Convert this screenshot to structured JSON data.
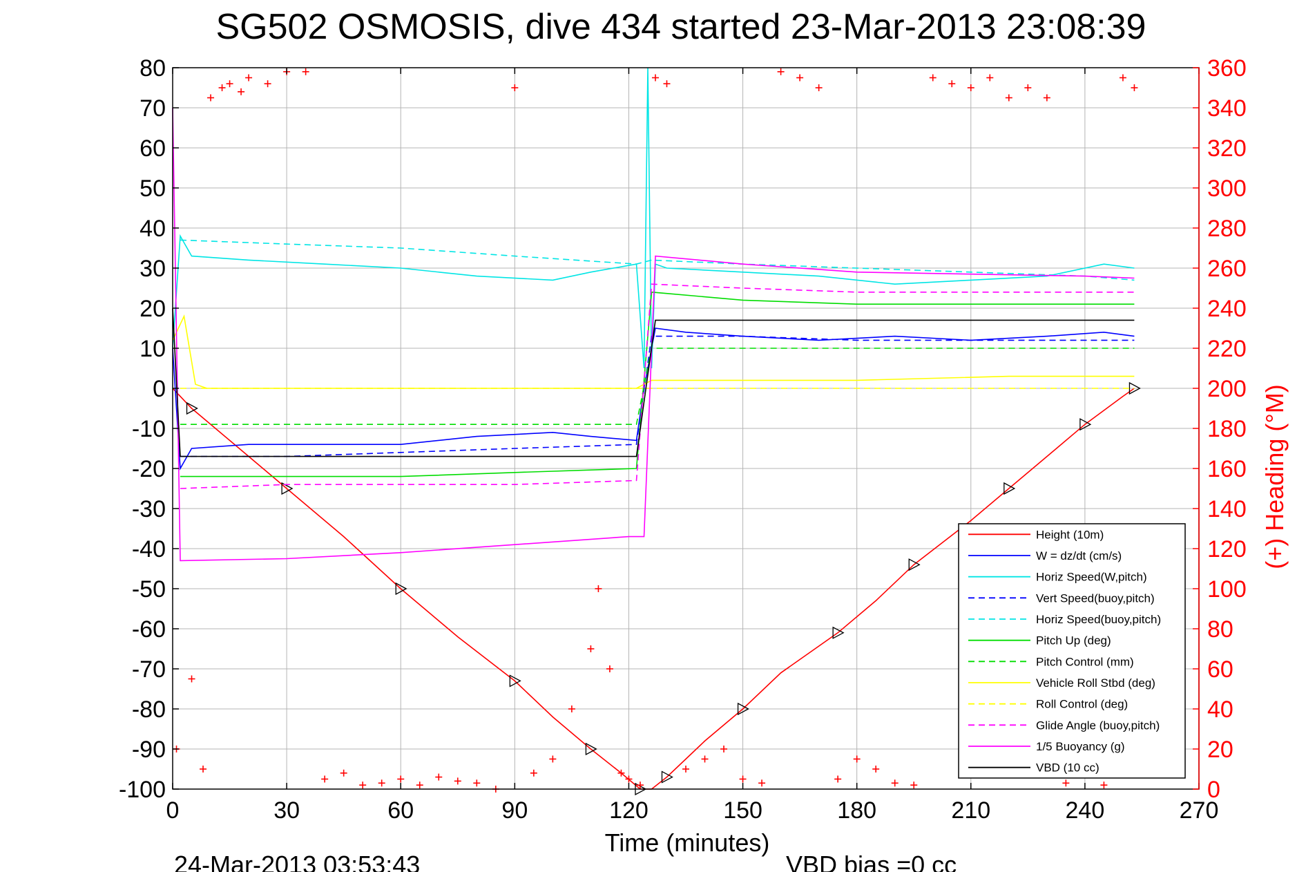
{
  "chart_data": {
    "type": "line",
    "title": "SG502 OSMOSIS, dive 434 started 23-Mar-2013 23:08:39",
    "xlabel": "Time (minutes)",
    "ylabel": "",
    "y2label": "(+) Heading (°M)",
    "xlim": [
      0,
      270
    ],
    "ylim": [
      -100,
      80
    ],
    "y2lim": [
      0,
      360
    ],
    "x_ticks": [
      "0",
      "30",
      "60",
      "90",
      "120",
      "150",
      "180",
      "210",
      "240",
      "270"
    ],
    "y_ticks": [
      "80",
      "70",
      "60",
      "50",
      "40",
      "30",
      "20",
      "10",
      "0",
      "-10",
      "-20",
      "-30",
      "-40",
      "-50",
      "-60",
      "-70",
      "-80",
      "-90",
      "-100"
    ],
    "y2_ticks": [
      "360",
      "340",
      "320",
      "300",
      "280",
      "260",
      "240",
      "220",
      "200",
      "180",
      "160",
      "140",
      "120",
      "100",
      "80",
      "60",
      "40",
      "20",
      "0"
    ],
    "grid": true,
    "legend_position": "lower-right",
    "end_time": "24-Mar-2013 03:53:43",
    "vbd_bias": "VBD bias =0 cc",
    "series": [
      {
        "name": "Height (10m)",
        "color": "#ff0000",
        "style": "solid",
        "x": [
          0,
          5,
          15,
          30,
          45,
          60,
          75,
          90,
          100,
          110,
          118,
          123,
          126,
          130,
          140,
          150,
          160,
          175,
          185,
          195,
          210,
          220,
          230,
          240,
          250,
          253
        ],
        "y": [
          0,
          -5,
          -13,
          -25,
          -37,
          -50,
          -62,
          -73,
          -82,
          -90,
          -96,
          -100,
          -100,
          -97,
          -88,
          -80,
          -71,
          -61,
          -53,
          -44,
          -33,
          -25,
          -17,
          -9,
          -2,
          0
        ]
      },
      {
        "name": "W = dz/dt (cm/s)",
        "color": "#0000ff",
        "style": "solid",
        "x": [
          0,
          2,
          5,
          20,
          40,
          60,
          80,
          100,
          110,
          122,
          124,
          127,
          135,
          150,
          170,
          190,
          210,
          230,
          245,
          253
        ],
        "y": [
          10,
          -20,
          -15,
          -14,
          -14,
          -14,
          -12,
          -11,
          -12,
          -13,
          0,
          15,
          14,
          13,
          12,
          13,
          12,
          13,
          14,
          13
        ]
      },
      {
        "name": "Horiz Speed(W,pitch)",
        "color": "#00e5e5",
        "style": "solid",
        "x": [
          0,
          2,
          5,
          20,
          40,
          60,
          80,
          100,
          110,
          122,
          124,
          125,
          126,
          127,
          130,
          150,
          170,
          190,
          210,
          230,
          245,
          253
        ],
        "y": [
          10,
          38,
          33,
          32,
          31,
          30,
          28,
          27,
          29,
          31,
          5,
          80,
          5,
          31,
          30,
          29,
          28,
          26,
          27,
          28,
          31,
          30
        ]
      },
      {
        "name": "Vert Speed(buoy,pitch)",
        "color": "#0000ff",
        "style": "dashed",
        "x": [
          2,
          30,
          60,
          90,
          122,
          126,
          150,
          180,
          210,
          240,
          253
        ],
        "y": [
          -17,
          -17,
          -16,
          -15,
          -14,
          13,
          13,
          12,
          12,
          12,
          12
        ]
      },
      {
        "name": "Horiz Speed(buoy,pitch)",
        "color": "#00e5e5",
        "style": "dashed",
        "x": [
          2,
          30,
          60,
          90,
          122,
          126,
          150,
          180,
          210,
          240,
          253
        ],
        "y": [
          37,
          36,
          35,
          33,
          31,
          32,
          31,
          30,
          29,
          28,
          27
        ]
      },
      {
        "name": "Pitch Up (deg)",
        "color": "#00dd00",
        "style": "solid",
        "x": [
          2,
          30,
          60,
          90,
          122,
          126,
          150,
          180,
          210,
          240,
          253
        ],
        "y": [
          -22,
          -22,
          -22,
          -21,
          -20,
          24,
          22,
          21,
          21,
          21,
          21
        ]
      },
      {
        "name": "Pitch Control (mm)",
        "color": "#00dd00",
        "style": "dashed",
        "x": [
          2,
          122,
          126,
          253
        ],
        "y": [
          -9,
          -9,
          10,
          10
        ]
      },
      {
        "name": "Vehicle Roll Stbd (deg)",
        "color": "#ffff00",
        "style": "solid",
        "x": [
          0,
          3,
          6,
          9,
          122,
          126,
          180,
          220,
          253
        ],
        "y": [
          12,
          18,
          1,
          0,
          0,
          2,
          2,
          3,
          3
        ]
      },
      {
        "name": "Roll Control (deg)",
        "color": "#ffff00",
        "style": "dashed",
        "x": [
          2,
          253
        ],
        "y": [
          0,
          0
        ]
      },
      {
        "name": "Glide Angle (buoy,pitch)",
        "color": "#ff00ff",
        "style": "dashed",
        "x": [
          2,
          30,
          60,
          90,
          122,
          126,
          150,
          180,
          210,
          240,
          253
        ],
        "y": [
          -25,
          -24,
          -24,
          -24,
          -23,
          26,
          25,
          24,
          24,
          24,
          24
        ]
      },
      {
        "name": "1/5 Buoyancy (g)",
        "color": "#ff00ff",
        "style": "solid",
        "x": [
          0,
          2,
          30,
          60,
          90,
          120,
          124,
          127,
          150,
          180,
          210,
          240,
          253
        ],
        "y": [
          70,
          -43,
          -42.5,
          -41,
          -39,
          -37,
          -37,
          33,
          31,
          29,
          28.5,
          28,
          27.5
        ]
      },
      {
        "name": "VBD (10 cc)",
        "color": "#000000",
        "style": "solid",
        "x": [
          0,
          2,
          122,
          127,
          253
        ],
        "y": [
          20,
          -17,
          -17,
          17,
          17
        ]
      },
      {
        "name": "Heading",
        "color": "#ff0000",
        "style": "markers",
        "axis": "right",
        "x": [
          1,
          5,
          8,
          10,
          13,
          15,
          18,
          20,
          25,
          30,
          35,
          40,
          45,
          50,
          55,
          60,
          65,
          70,
          75,
          80,
          85,
          90,
          95,
          100,
          105,
          110,
          112,
          115,
          118,
          120,
          123,
          127,
          130,
          135,
          140,
          145,
          150,
          155,
          160,
          165,
          170,
          175,
          180,
          185,
          190,
          195,
          200,
          205,
          210,
          215,
          220,
          225,
          230,
          235,
          240,
          245,
          250,
          253
        ],
        "y": [
          20,
          55,
          10,
          345,
          350,
          352,
          348,
          355,
          352,
          358,
          358,
          5,
          8,
          2,
          3,
          5,
          2,
          6,
          4,
          3,
          0,
          350,
          8,
          15,
          40,
          70,
          100,
          60,
          8,
          5,
          2,
          355,
          352,
          10,
          15,
          20,
          5,
          3,
          358,
          355,
          350,
          5,
          15,
          10,
          3,
          2,
          355,
          352,
          350,
          355,
          345,
          350,
          345,
          3,
          8,
          2,
          355,
          350
        ]
      }
    ]
  }
}
